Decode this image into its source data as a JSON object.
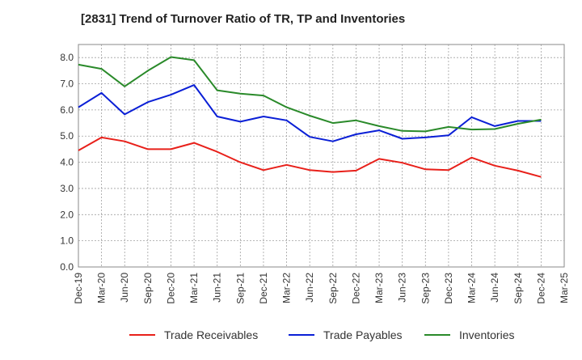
{
  "chart_data": {
    "type": "line",
    "title": "[2831]  Trend of Turnover Ratio of TR, TP and Inventories",
    "xlabel": "",
    "ylabel": "",
    "ylim": [
      0,
      8.5
    ],
    "yticks": [
      "0.0",
      "1.0",
      "2.0",
      "3.0",
      "4.0",
      "5.0",
      "6.0",
      "7.0",
      "8.0"
    ],
    "x": [
      "Dec-19",
      "Mar-20",
      "Jun-20",
      "Sep-20",
      "Dec-20",
      "Mar-21",
      "Jun-21",
      "Sep-21",
      "Dec-21",
      "Mar-22",
      "Jun-22",
      "Sep-22",
      "Dec-22",
      "Mar-23",
      "Jun-23",
      "Sep-23",
      "Dec-23",
      "Mar-24",
      "Jun-24",
      "Sep-24",
      "Dec-24",
      "Mar-25"
    ],
    "grid": true,
    "legend_position": "bottom",
    "series": [
      {
        "name": "Trade Receivables",
        "color": "#e8201a",
        "values": [
          4.45,
          4.95,
          4.8,
          4.5,
          4.5,
          4.74,
          4.4,
          4.0,
          3.7,
          3.9,
          3.7,
          3.63,
          3.68,
          4.13,
          3.98,
          3.73,
          3.7,
          4.18,
          3.87,
          3.68,
          3.44,
          null
        ]
      },
      {
        "name": "Trade Payables",
        "color": "#0a1fd6",
        "values": [
          6.1,
          6.65,
          5.83,
          6.3,
          6.58,
          6.95,
          5.75,
          5.55,
          5.75,
          5.6,
          4.97,
          4.8,
          5.07,
          5.22,
          4.9,
          4.95,
          5.03,
          5.72,
          5.38,
          5.58,
          5.58,
          null
        ]
      },
      {
        "name": "Inventories",
        "color": "#2a8a2a",
        "values": [
          7.73,
          7.57,
          6.9,
          7.5,
          8.02,
          7.9,
          6.75,
          6.62,
          6.55,
          6.1,
          5.78,
          5.5,
          5.6,
          5.38,
          5.2,
          5.18,
          5.35,
          5.25,
          5.27,
          5.47,
          5.63,
          null
        ]
      }
    ]
  }
}
